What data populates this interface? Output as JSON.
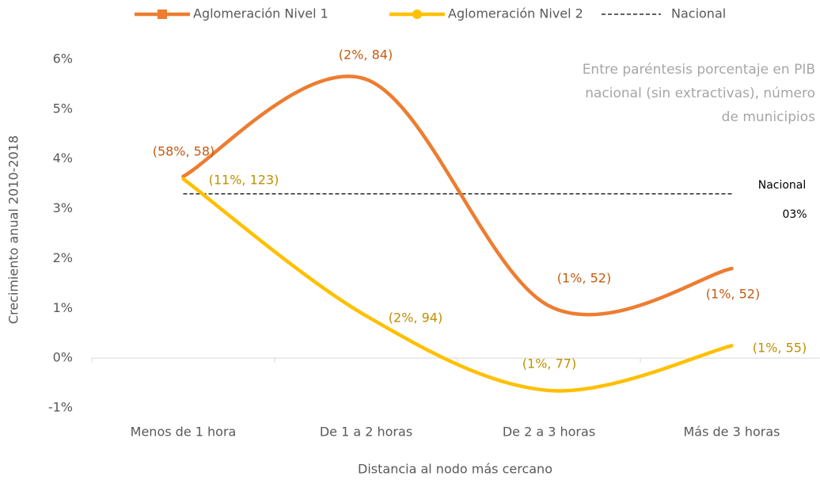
{
  "chart_data": {
    "type": "line",
    "categories": [
      "Menos de 1 hora",
      "De 1 a 2 horas",
      "De 2 a 3 horas",
      "Más de 3 horas"
    ],
    "series": [
      {
        "name": "Aglomeración Nivel 1",
        "color": "#ED7D31",
        "label_color": "#C55A11",
        "marker": "square",
        "values": [
          3.65,
          5.6,
          1.05,
          1.8
        ],
        "point_labels": [
          "(58%, 58)",
          "(2%, 84)",
          "(1%, 52)",
          "(1%, 52)"
        ]
      },
      {
        "name": "Aglomeración Nivel 2",
        "color": "#FFC000",
        "label_color": "#BF9000",
        "marker": "circle",
        "values": [
          3.6,
          0.85,
          -0.65,
          0.25
        ],
        "point_labels": [
          "(11%, 123)",
          "(2%, 94)",
          "(1%, 77)",
          "(1%, 55)"
        ]
      }
    ],
    "national": {
      "name": "Nacional",
      "value": 3.3,
      "value_label": "03%",
      "color": "#000000"
    },
    "ylim": [
      -1,
      6
    ],
    "yticks": [
      {
        "value": -1,
        "label": "-1%"
      },
      {
        "value": 0,
        "label": "0%"
      },
      {
        "value": 1,
        "label": "1%"
      },
      {
        "value": 2,
        "label": "2%"
      },
      {
        "value": 3,
        "label": "3%"
      },
      {
        "value": 4,
        "label": "4%"
      },
      {
        "value": 5,
        "label": "5%"
      },
      {
        "value": 6,
        "label": "6%"
      }
    ],
    "y_label": "Crecimiento anual 2010-2018",
    "x_label": "Distancia al nodo más cercano",
    "note": [
      "Entre paréntesis porcentaje en PIB",
      "nacional (sin extractivas), número",
      "de municipios"
    ],
    "smooth": true
  }
}
